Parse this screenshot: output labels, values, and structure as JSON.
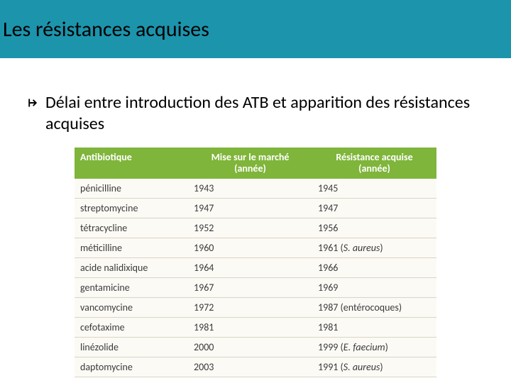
{
  "colors": {
    "titlebar_bg": "#1c94ac",
    "table_header_bg": "#7fb53a",
    "row_bg": "#fcfaf5",
    "row_border": "#d9d4c5",
    "bullet_icon_fill": "#000000"
  },
  "title": "Les résistances acquises",
  "bullet": "Délai entre introduction des ATB et apparition des résistances acquises",
  "table": {
    "columns": [
      {
        "label_lines": [
          "Antibiotique"
        ],
        "align": "left"
      },
      {
        "label_lines": [
          "Mise sur le marché",
          "(année)"
        ],
        "align": "center"
      },
      {
        "label_lines": [
          "Résistance acquise",
          "(année)"
        ],
        "align": "center"
      }
    ],
    "rows": [
      {
        "antibio": "pénicilline",
        "market": "1943",
        "resist": "1945"
      },
      {
        "antibio": "streptomycine",
        "market": "1947",
        "resist": "1947"
      },
      {
        "antibio": "tétracycline",
        "market": "1952",
        "resist": "1956"
      },
      {
        "antibio": "méticilline",
        "market": "1960",
        "resist": "1961",
        "resist_note": "S. aureus"
      },
      {
        "antibio": "acide nalidixique",
        "market": "1964",
        "resist": "1966"
      },
      {
        "antibio": "gentamicine",
        "market": "1967",
        "resist": "1969"
      },
      {
        "antibio": "vancomycine",
        "market": "1972",
        "resist": "1987",
        "resist_note_plain": "entérocoques"
      },
      {
        "antibio": "cefotaxime",
        "market": "1981",
        "resist": "1981"
      },
      {
        "antibio": "linézolide",
        "market": "2000",
        "resist": "1999",
        "resist_note": "E. faecium"
      },
      {
        "antibio": "daptomycine",
        "market": "2003",
        "resist": "1991",
        "resist_note": "S. aureus"
      }
    ]
  },
  "typography": {
    "title_fontsize": 30,
    "bullet_fontsize": 24,
    "table_header_fontsize": 14,
    "table_cell_fontsize": 14
  }
}
